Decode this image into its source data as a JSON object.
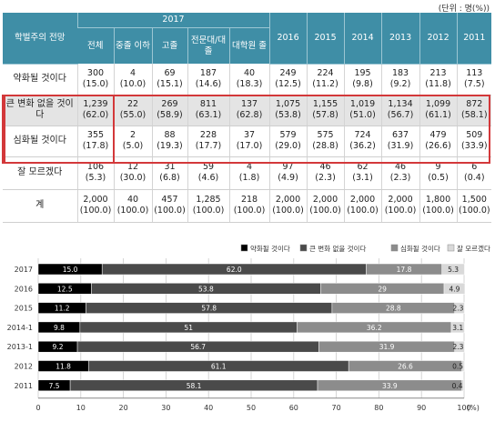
{
  "unit_note": "(단위 : 명(%))",
  "table": {
    "corner": "학벌주의 전망",
    "year_group": "2017",
    "subheads": [
      "전체",
      "중졸 이하",
      "고졸",
      "전문대/대졸",
      "대학원 졸"
    ],
    "years": [
      "2016",
      "2015",
      "2014",
      "2013",
      "2012",
      "2011"
    ],
    "rows": [
      {
        "label": "약화될 것이다",
        "cells": [
          [
            "300",
            "(15.0)"
          ],
          [
            "4",
            "(10.0)"
          ],
          [
            "69",
            "(15.1)"
          ],
          [
            "187",
            "(14.6)"
          ],
          [
            "40",
            "(18.3)"
          ],
          [
            "249",
            "(12.5)"
          ],
          [
            "224",
            "(11.2)"
          ],
          [
            "195",
            "(9.8)"
          ],
          [
            "183",
            "(9.2)"
          ],
          [
            "213",
            "(11.8)"
          ],
          [
            "113",
            "(7.5)"
          ]
        ]
      },
      {
        "label": "큰 변화 없을 것이다",
        "cells": [
          [
            "1,239",
            "(62.0)"
          ],
          [
            "22",
            "(55.0)"
          ],
          [
            "269",
            "(58.9)"
          ],
          [
            "811",
            "(63.1)"
          ],
          [
            "137",
            "(62.8)"
          ],
          [
            "1,075",
            "(53.8)"
          ],
          [
            "1,155",
            "(57.8)"
          ],
          [
            "1,019",
            "(51.0)"
          ],
          [
            "1,134",
            "(56.7)"
          ],
          [
            "1,099",
            "(61.1)"
          ],
          [
            "872",
            "(58.1)"
          ]
        ]
      },
      {
        "label": "심화될 것이다",
        "cells": [
          [
            "355",
            "(17.8)"
          ],
          [
            "2",
            "(5.0)"
          ],
          [
            "88",
            "(19.3)"
          ],
          [
            "228",
            "(17.7)"
          ],
          [
            "37",
            "(17.0)"
          ],
          [
            "579",
            "(29.0)"
          ],
          [
            "575",
            "(28.8)"
          ],
          [
            "724",
            "(36.2)"
          ],
          [
            "637",
            "(31.9)"
          ],
          [
            "479",
            "(26.6)"
          ],
          [
            "509",
            "(33.9)"
          ]
        ]
      },
      {
        "label": "잘 모르겠다",
        "cells": [
          [
            "106",
            "(5.3)"
          ],
          [
            "12",
            "(30.0)"
          ],
          [
            "31",
            "(6.8)"
          ],
          [
            "59",
            "(4.6)"
          ],
          [
            "4",
            "(1.8)"
          ],
          [
            "97",
            "(4.9)"
          ],
          [
            "46",
            "(2.3)"
          ],
          [
            "62",
            "(3.1)"
          ],
          [
            "46",
            "(2.3)"
          ],
          [
            "9",
            "(0.5)"
          ],
          [
            "6",
            "(0.4)"
          ]
        ]
      },
      {
        "label": "계",
        "cells": [
          [
            "2,000",
            "(100.0)"
          ],
          [
            "40",
            "(100.0)"
          ],
          [
            "457",
            "(100.0)"
          ],
          [
            "1,285",
            "(100.0)"
          ],
          [
            "218",
            "(100.0)"
          ],
          [
            "2,000",
            "(100.0)"
          ],
          [
            "2,000",
            "(100.0)"
          ],
          [
            "2,000",
            "(100.0)"
          ],
          [
            "2,000",
            "(100.0)"
          ],
          [
            "1,800",
            "(100.0)"
          ],
          [
            "1,500",
            "(100.0)"
          ]
        ]
      }
    ]
  },
  "colors": {
    "header_bg": "#3f8ea6",
    "highlight": "#d3383a",
    "s1": "#000000",
    "s2": "#4a4a4a",
    "s3": "#8c8c8c",
    "s4": "#d9d9d9"
  },
  "chart_data": {
    "type": "bar",
    "orientation": "horizontal",
    "stacked": true,
    "categories": [
      "2017",
      "2016",
      "2015",
      "2014-1",
      "2013-1",
      "2012",
      "2011"
    ],
    "series": [
      {
        "name": "약화될 것이다",
        "values": [
          15.0,
          12.5,
          11.2,
          9.8,
          9.2,
          11.8,
          7.5
        ],
        "labels": [
          "15.0",
          "12.5",
          "11.2",
          "9.8",
          "9.2",
          "11.8",
          "7.5"
        ]
      },
      {
        "name": "큰 변화 없을 것이다",
        "values": [
          62.0,
          53.8,
          57.8,
          51,
          56.7,
          61.1,
          58.1
        ],
        "labels": [
          "62.0",
          "53.8",
          "57.8",
          "51",
          "56.7",
          "61.1",
          "58.1"
        ]
      },
      {
        "name": "심화될 것이다",
        "values": [
          17.8,
          29,
          28.8,
          36.2,
          31.9,
          26.6,
          33.9
        ],
        "labels": [
          "17.8",
          "29",
          "28.8",
          "36.2",
          "31.9",
          "26.6",
          "33.9"
        ]
      },
      {
        "name": "잘 모르겠다",
        "values": [
          5.3,
          4.9,
          2.3,
          3.1,
          2.3,
          0.5,
          0.4
        ],
        "labels": [
          "5.3",
          "4.9",
          "2.3",
          "3.1",
          "2.3",
          "0.5",
          "0.4"
        ]
      }
    ],
    "xlim": [
      0,
      100
    ],
    "xticks": [
      "0",
      "10",
      "20",
      "30",
      "40",
      "50",
      "60",
      "70",
      "80",
      "90",
      "100"
    ],
    "x_unit": "(%)",
    "legend_position": "top-right",
    "grid": "vertical"
  }
}
